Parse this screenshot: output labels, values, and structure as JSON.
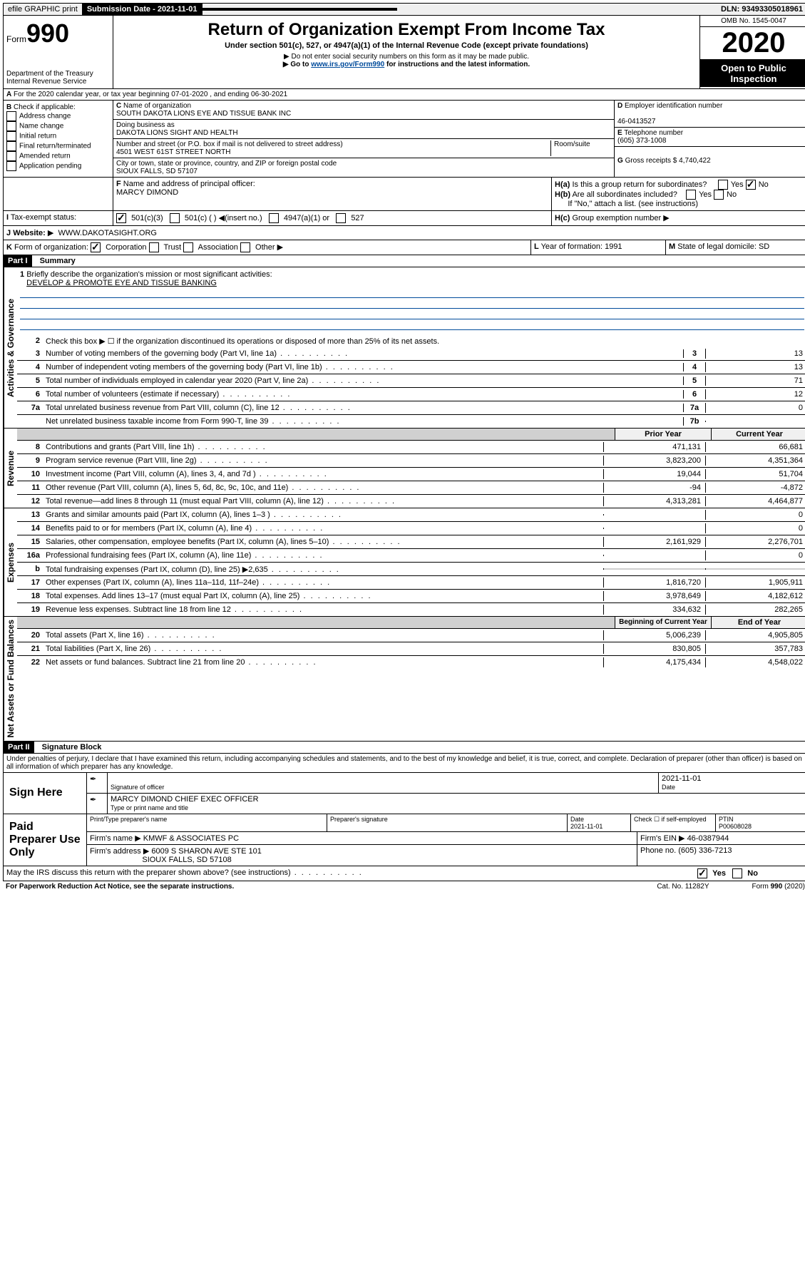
{
  "topbar": {
    "efile": "efile GRAPHIC print",
    "submission_label": "Submission Date - 2021-11-01",
    "dln": "DLN: 93493305018961"
  },
  "header": {
    "form_label": "Form",
    "form_number": "990",
    "dept": "Department of the Treasury",
    "irs": "Internal Revenue Service",
    "title": "Return of Organization Exempt From Income Tax",
    "subtitle": "Under section 501(c), 527, or 4947(a)(1) of the Internal Revenue Code (except private foundations)",
    "note1": "Do not enter social security numbers on this form as it may be made public.",
    "note2_pre": "Go to ",
    "note2_link": "www.irs.gov/Form990",
    "note2_post": " for instructions and the latest information.",
    "omb": "OMB No. 1545-0047",
    "year": "2020",
    "open": "Open to Public Inspection"
  },
  "row_a": "For the 2020 calendar year, or tax year beginning 07-01-2020    , and ending 06-30-2021",
  "box_b": {
    "label": "Check if applicable:",
    "opts": [
      "Address change",
      "Name change",
      "Initial return",
      "Final return/terminated",
      "Amended return",
      "Application pending"
    ]
  },
  "box_c": {
    "name_label": "Name of organization",
    "name": "SOUTH DAKOTA LIONS EYE AND TISSUE BANK INC",
    "dba_label": "Doing business as",
    "dba": "DAKOTA LIONS SIGHT AND HEALTH",
    "addr_label": "Number and street (or P.O. box if mail is not delivered to street address)",
    "room_label": "Room/suite",
    "addr": "4501 WEST 61ST STREET NORTH",
    "city_label": "City or town, state or province, country, and ZIP or foreign postal code",
    "city": "SIOUX FALLS, SD  57107"
  },
  "box_d": {
    "ein_label": "Employer identification number",
    "ein": "46-0413527",
    "phone_label": "Telephone number",
    "phone": "(605) 373-1008",
    "gross_label": "Gross receipts $",
    "gross": "4,740,422"
  },
  "box_f": {
    "label": "Name and address of principal officer:",
    "name": "MARCY DIMOND"
  },
  "box_h": {
    "a": "Is this a group return for subordinates?",
    "b": "Are all subordinates included?",
    "b_note": "If \"No,\" attach a list. (see instructions)",
    "c": "Group exemption number",
    "yes": "Yes",
    "no": "No"
  },
  "box_i": {
    "label": "Tax-exempt status:",
    "o1": "501(c)(3)",
    "o2": "501(c) (  )",
    "o2b": "(insert no.)",
    "o3": "4947(a)(1) or",
    "o4": "527"
  },
  "box_j": {
    "label": "Website:",
    "url": "WWW.DAKOTASIGHT.ORG"
  },
  "box_k": {
    "label": "Form of organization:",
    "o1": "Corporation",
    "o2": "Trust",
    "o3": "Association",
    "o4": "Other"
  },
  "box_l": {
    "label": "Year of formation:",
    "val": "1991"
  },
  "box_m": {
    "label": "State of legal domicile:",
    "val": "SD"
  },
  "part1": {
    "title": "Part I",
    "name": "Summary",
    "sections": {
      "gov": "Activities & Governance",
      "rev": "Revenue",
      "exp": "Expenses",
      "net": "Net Assets or Fund Balances"
    },
    "l1": "Briefly describe the organization's mission or most significant activities:",
    "l1_val": "DEVELOP & PROMOTE EYE AND TISSUE BANKING",
    "l2": "Check this box ▶ ☐  if the organization discontinued its operations or disposed of more than 25% of its net assets.",
    "lines_single": [
      {
        "n": "3",
        "d": "Number of voting members of the governing body (Part VI, line 1a)",
        "box": "3",
        "v": "13"
      },
      {
        "n": "4",
        "d": "Number of independent voting members of the governing body (Part VI, line 1b)",
        "box": "4",
        "v": "13"
      },
      {
        "n": "5",
        "d": "Total number of individuals employed in calendar year 2020 (Part V, line 2a)",
        "box": "5",
        "v": "71"
      },
      {
        "n": "6",
        "d": "Total number of volunteers (estimate if necessary)",
        "box": "6",
        "v": "12"
      },
      {
        "n": "7a",
        "d": "Total unrelated business revenue from Part VIII, column (C), line 12",
        "box": "7a",
        "v": "0"
      },
      {
        "n": "",
        "d": "Net unrelated business taxable income from Form 990-T, line 39",
        "box": "7b",
        "v": ""
      }
    ],
    "col_headers": {
      "py": "Prior Year",
      "cy": "Current Year"
    },
    "rev_lines": [
      {
        "n": "8",
        "d": "Contributions and grants (Part VIII, line 1h)",
        "py": "471,131",
        "cy": "66,681"
      },
      {
        "n": "9",
        "d": "Program service revenue (Part VIII, line 2g)",
        "py": "3,823,200",
        "cy": "4,351,364"
      },
      {
        "n": "10",
        "d": "Investment income (Part VIII, column (A), lines 3, 4, and 7d )",
        "py": "19,044",
        "cy": "51,704"
      },
      {
        "n": "11",
        "d": "Other revenue (Part VIII, column (A), lines 5, 6d, 8c, 9c, 10c, and 11e)",
        "py": "-94",
        "cy": "-4,872"
      },
      {
        "n": "12",
        "d": "Total revenue—add lines 8 through 11 (must equal Part VIII, column (A), line 12)",
        "py": "4,313,281",
        "cy": "4,464,877"
      }
    ],
    "exp_lines": [
      {
        "n": "13",
        "d": "Grants and similar amounts paid (Part IX, column (A), lines 1–3 )",
        "py": "",
        "cy": "0"
      },
      {
        "n": "14",
        "d": "Benefits paid to or for members (Part IX, column (A), line 4)",
        "py": "",
        "cy": "0"
      },
      {
        "n": "15",
        "d": "Salaries, other compensation, employee benefits (Part IX, column (A), lines 5–10)",
        "py": "2,161,929",
        "cy": "2,276,701"
      },
      {
        "n": "16a",
        "d": "Professional fundraising fees (Part IX, column (A), line 11e)",
        "py": "",
        "cy": "0"
      },
      {
        "n": "b",
        "d": "Total fundraising expenses (Part IX, column (D), line 25) ▶2,635",
        "py": "GRAY",
        "cy": "GRAY"
      },
      {
        "n": "17",
        "d": "Other expenses (Part IX, column (A), lines 11a–11d, 11f–24e)",
        "py": "1,816,720",
        "cy": "1,905,911"
      },
      {
        "n": "18",
        "d": "Total expenses. Add lines 13–17 (must equal Part IX, column (A), line 25)",
        "py": "3,978,649",
        "cy": "4,182,612"
      },
      {
        "n": "19",
        "d": "Revenue less expenses. Subtract line 18 from line 12",
        "py": "334,632",
        "cy": "282,265"
      }
    ],
    "net_headers": {
      "py": "Beginning of Current Year",
      "cy": "End of Year"
    },
    "net_lines": [
      {
        "n": "20",
        "d": "Total assets (Part X, line 16)",
        "py": "5,006,239",
        "cy": "4,905,805"
      },
      {
        "n": "21",
        "d": "Total liabilities (Part X, line 26)",
        "py": "830,805",
        "cy": "357,783"
      },
      {
        "n": "22",
        "d": "Net assets or fund balances. Subtract line 21 from line 20",
        "py": "4,175,434",
        "cy": "4,548,022"
      }
    ]
  },
  "part2": {
    "title": "Part II",
    "name": "Signature Block",
    "perjury": "Under penalties of perjury, I declare that I have examined this return, including accompanying schedules and statements, and to the best of my knowledge and belief, it is true, correct, and complete. Declaration of preparer (other than officer) is based on all information of which preparer has any knowledge.",
    "sign_here": "Sign Here",
    "sig_officer": "Signature of officer",
    "date_label": "Date",
    "sig_date": "2021-11-01",
    "officer_name": "MARCY DIMOND CHIEF EXEC OFFICER",
    "type_name": "Type or print name and title",
    "paid": "Paid Preparer Use Only",
    "prep_name_label": "Print/Type preparer's name",
    "prep_sig_label": "Preparer's signature",
    "prep_date": "2021-11-01",
    "check_self": "Check ☐ if self-employed",
    "ptin_label": "PTIN",
    "ptin": "P00608028",
    "firm_name_label": "Firm's name    ▶",
    "firm_name": "KMWF & ASSOCIATES PC",
    "firm_ein_label": "Firm's EIN ▶",
    "firm_ein": "46-0387944",
    "firm_addr_label": "Firm's address ▶",
    "firm_addr1": "6009 S SHARON AVE STE 101",
    "firm_addr2": "SIOUX FALLS, SD  57108",
    "firm_phone_label": "Phone no.",
    "firm_phone": "(605) 336-7213",
    "discuss": "May the IRS discuss this return with the preparer shown above? (see instructions)"
  },
  "footer": {
    "pra": "For Paperwork Reduction Act Notice, see the separate instructions.",
    "cat": "Cat. No. 11282Y",
    "form": "Form 990 (2020)"
  }
}
